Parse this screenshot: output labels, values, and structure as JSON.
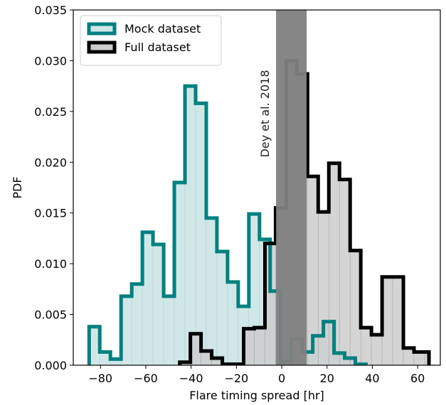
{
  "chart_data": {
    "type": "histogram",
    "xlabel": "Flare timing spread [hr]",
    "ylabel": "PDF",
    "xlim": [
      -92,
      70
    ],
    "ylim": [
      0,
      0.035
    ],
    "xticks": [
      -80,
      -60,
      -40,
      -20,
      0,
      20,
      40,
      60
    ],
    "yticks": [
      0.0,
      0.005,
      0.01,
      0.015,
      0.02,
      0.025,
      0.03,
      0.035
    ],
    "xtick_labels": [
      "−80",
      "−60",
      "−40",
      "−20",
      "0",
      "20",
      "40",
      "60"
    ],
    "ytick_labels": [
      "0.000",
      "0.005",
      "0.010",
      "0.015",
      "0.020",
      "0.025",
      "0.030",
      "0.035"
    ],
    "legend_position": "upper-left",
    "series": [
      {
        "name": "Mock dataset",
        "edge_color": "#008080",
        "fill_color": "#cfe6e6",
        "bin_edges": [
          -85,
          -80.3,
          -75.6,
          -70.9,
          -66.2,
          -61.5,
          -56.8,
          -52.1,
          -47.4,
          -42.7,
          -38,
          -33.3,
          -28.6,
          -23.9,
          -19.2,
          -14.5,
          -9.8,
          -5.1,
          -0.4,
          4.3,
          9,
          13.7,
          18.4,
          23.1,
          27.8,
          32.5,
          37.2
        ],
        "values": [
          0.0038,
          0.0013,
          0.0006,
          0.0068,
          0.008,
          0.0131,
          0.0119,
          0.0068,
          0.018,
          0.0275,
          0.0258,
          0.0145,
          0.0112,
          0.0082,
          0.0058,
          0.0149,
          0.0124,
          0.0073,
          0.0004,
          0.0026,
          0.0013,
          0.0029,
          0.0043,
          0.0012,
          0.0007,
          0.0001
        ]
      },
      {
        "name": "Full dataset",
        "edge_color": "#000000",
        "fill_color": "#cccccc",
        "bin_edges": [
          -45,
          -40.3,
          -35.6,
          -30.9,
          -26.2,
          -21.5,
          -16.8,
          -12.1,
          -7.4,
          -2.7,
          2,
          6.7,
          11.4,
          16.1,
          20.8,
          25.5,
          30.2,
          34.9,
          39.6,
          44.3,
          49,
          53.7,
          58.4,
          63.1,
          65
        ],
        "values": [
          0.0003,
          0.0031,
          0.0014,
          0.0007,
          0.0001,
          0.0001,
          0.0036,
          0.0037,
          0.012,
          0.0155,
          0.03,
          0.0287,
          0.0186,
          0.0151,
          0.0199,
          0.0183,
          0.0113,
          0.0037,
          0.003,
          0.0087,
          0.0087,
          0.0017,
          0.0013,
          0.0013
        ]
      }
    ],
    "annotation": {
      "text": "Dey et al. 2018",
      "band_x": [
        -2.5,
        11
      ],
      "band_color": "#808080"
    }
  }
}
